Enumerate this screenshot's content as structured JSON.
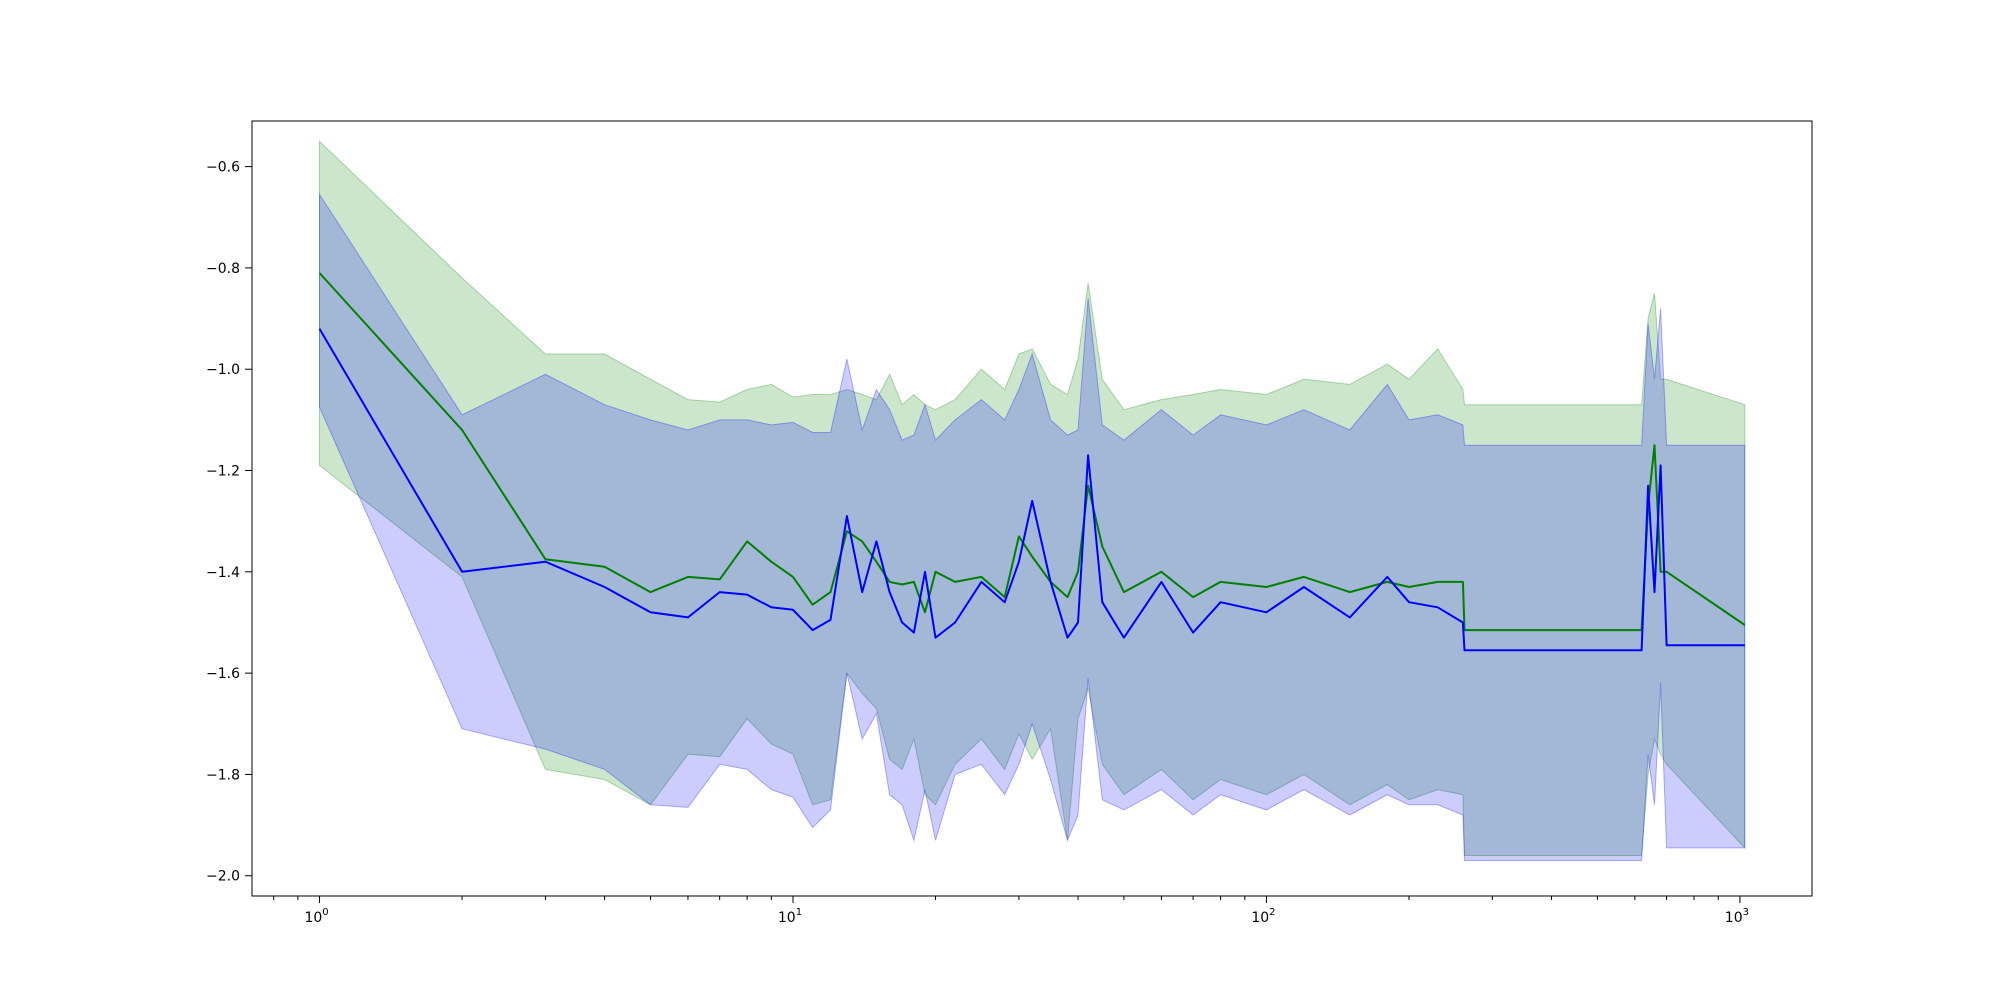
{
  "chart_data": {
    "type": "line",
    "title": "",
    "xlabel": "",
    "ylabel": "",
    "x_scale": "log",
    "xlim": [
      0.72,
      1420
    ],
    "ylim": [
      -2.04,
      -0.51
    ],
    "grid": false,
    "x_ticks": [
      {
        "value": 1,
        "base": "10",
        "exp": "0"
      },
      {
        "value": 10,
        "base": "10",
        "exp": "1"
      },
      {
        "value": 100,
        "base": "10",
        "exp": "2"
      },
      {
        "value": 1000,
        "base": "10",
        "exp": "3"
      }
    ],
    "y_ticks": [
      {
        "value": -0.6,
        "label": "−0.6"
      },
      {
        "value": -0.8,
        "label": "−0.8"
      },
      {
        "value": -1.0,
        "label": "−1.0"
      },
      {
        "value": -1.2,
        "label": "−1.2"
      },
      {
        "value": -1.4,
        "label": "−1.4"
      },
      {
        "value": -1.6,
        "label": "−1.6"
      },
      {
        "value": -1.8,
        "label": "−1.8"
      },
      {
        "value": -2.0,
        "label": "−2.0"
      }
    ],
    "series": [
      {
        "color": "#008000",
        "band_color": "#008000",
        "band_opacity": 0.2,
        "x": [
          1,
          2,
          3,
          4,
          5,
          6,
          7,
          8,
          9,
          10,
          11,
          12,
          13,
          14,
          15,
          16,
          17,
          18,
          19,
          20,
          22,
          25,
          28,
          30,
          32,
          35,
          38,
          40,
          42,
          45,
          50,
          60,
          70,
          80,
          100,
          120,
          150,
          180,
          200,
          230,
          260,
          262,
          620,
          640,
          660,
          680,
          700,
          1024
        ],
        "values": [
          -0.81,
          -1.12,
          -1.375,
          -1.39,
          -1.44,
          -1.41,
          -1.415,
          -1.34,
          -1.38,
          -1.41,
          -1.465,
          -1.44,
          -1.32,
          -1.34,
          -1.38,
          -1.42,
          -1.425,
          -1.42,
          -1.48,
          -1.4,
          -1.42,
          -1.41,
          -1.45,
          -1.33,
          -1.37,
          -1.42,
          -1.45,
          -1.4,
          -1.23,
          -1.35,
          -1.44,
          -1.4,
          -1.45,
          -1.42,
          -1.43,
          -1.41,
          -1.44,
          -1.42,
          -1.43,
          -1.42,
          -1.42,
          -1.515,
          -1.515,
          -1.27,
          -1.15,
          -1.4,
          -1.4,
          -1.505
        ],
        "lower": [
          -1.19,
          -1.41,
          -1.79,
          -1.81,
          -1.86,
          -1.76,
          -1.765,
          -1.69,
          -1.74,
          -1.76,
          -1.86,
          -1.85,
          -1.6,
          -1.64,
          -1.67,
          -1.77,
          -1.79,
          -1.73,
          -1.84,
          -1.86,
          -1.78,
          -1.73,
          -1.79,
          -1.72,
          -1.77,
          -1.71,
          -1.93,
          -1.69,
          -1.63,
          -1.78,
          -1.84,
          -1.79,
          -1.85,
          -1.81,
          -1.84,
          -1.8,
          -1.86,
          -1.82,
          -1.85,
          -1.83,
          -1.84,
          -1.96,
          -1.96,
          -1.8,
          -1.73,
          -1.76,
          -1.78,
          -1.945
        ],
        "upper": [
          -0.55,
          -0.82,
          -0.97,
          -0.97,
          -1.02,
          -1.06,
          -1.065,
          -1.04,
          -1.03,
          -1.055,
          -1.05,
          -1.05,
          -1.04,
          -1.05,
          -1.06,
          -1.01,
          -1.07,
          -1.05,
          -1.07,
          -1.08,
          -1.06,
          -1.0,
          -1.04,
          -0.97,
          -0.96,
          -1.03,
          -1.05,
          -0.98,
          -0.83,
          -1.02,
          -1.08,
          -1.06,
          -1.05,
          -1.04,
          -1.05,
          -1.02,
          -1.03,
          -0.99,
          -1.02,
          -0.96,
          -1.04,
          -1.07,
          -1.07,
          -0.9,
          -0.85,
          -1.02,
          -1.02,
          -1.07
        ]
      },
      {
        "color": "#0000ff",
        "band_color": "#0000ff",
        "band_opacity": 0.2,
        "x": [
          1,
          2,
          3,
          4,
          5,
          6,
          7,
          8,
          9,
          10,
          11,
          12,
          13,
          14,
          15,
          16,
          17,
          18,
          19,
          20,
          22,
          25,
          28,
          30,
          32,
          35,
          38,
          40,
          42,
          45,
          50,
          60,
          70,
          80,
          100,
          120,
          150,
          180,
          200,
          230,
          260,
          262,
          620,
          640,
          660,
          680,
          700,
          1024
        ],
        "values": [
          -0.92,
          -1.4,
          -1.38,
          -1.43,
          -1.48,
          -1.49,
          -1.44,
          -1.445,
          -1.47,
          -1.475,
          -1.515,
          -1.495,
          -1.29,
          -1.44,
          -1.34,
          -1.44,
          -1.5,
          -1.52,
          -1.4,
          -1.53,
          -1.5,
          -1.42,
          -1.46,
          -1.38,
          -1.26,
          -1.42,
          -1.53,
          -1.5,
          -1.17,
          -1.46,
          -1.53,
          -1.42,
          -1.52,
          -1.46,
          -1.48,
          -1.43,
          -1.49,
          -1.41,
          -1.46,
          -1.47,
          -1.5,
          -1.555,
          -1.555,
          -1.23,
          -1.44,
          -1.19,
          -1.545,
          -1.545
        ],
        "lower": [
          -1.075,
          -1.71,
          -1.75,
          -1.79,
          -1.86,
          -1.865,
          -1.78,
          -1.79,
          -1.83,
          -1.845,
          -1.905,
          -1.87,
          -1.6,
          -1.73,
          -1.68,
          -1.84,
          -1.86,
          -1.93,
          -1.83,
          -1.93,
          -1.8,
          -1.78,
          -1.84,
          -1.78,
          -1.7,
          -1.81,
          -1.93,
          -1.88,
          -1.61,
          -1.85,
          -1.87,
          -1.83,
          -1.88,
          -1.84,
          -1.87,
          -1.83,
          -1.88,
          -1.84,
          -1.86,
          -1.86,
          -1.88,
          -1.97,
          -1.97,
          -1.76,
          -1.86,
          -1.62,
          -1.945,
          -1.945
        ],
        "upper": [
          -0.655,
          -1.09,
          -1.01,
          -1.07,
          -1.1,
          -1.12,
          -1.1,
          -1.1,
          -1.11,
          -1.105,
          -1.125,
          -1.125,
          -0.98,
          -1.12,
          -1.04,
          -1.08,
          -1.14,
          -1.13,
          -1.07,
          -1.14,
          -1.1,
          -1.06,
          -1.1,
          -1.04,
          -0.97,
          -1.1,
          -1.13,
          -1.12,
          -0.86,
          -1.11,
          -1.14,
          -1.08,
          -1.13,
          -1.09,
          -1.11,
          -1.08,
          -1.12,
          -1.03,
          -1.1,
          -1.09,
          -1.11,
          -1.15,
          -1.15,
          -0.91,
          -1.02,
          -0.88,
          -1.15,
          -1.15
        ]
      }
    ]
  }
}
